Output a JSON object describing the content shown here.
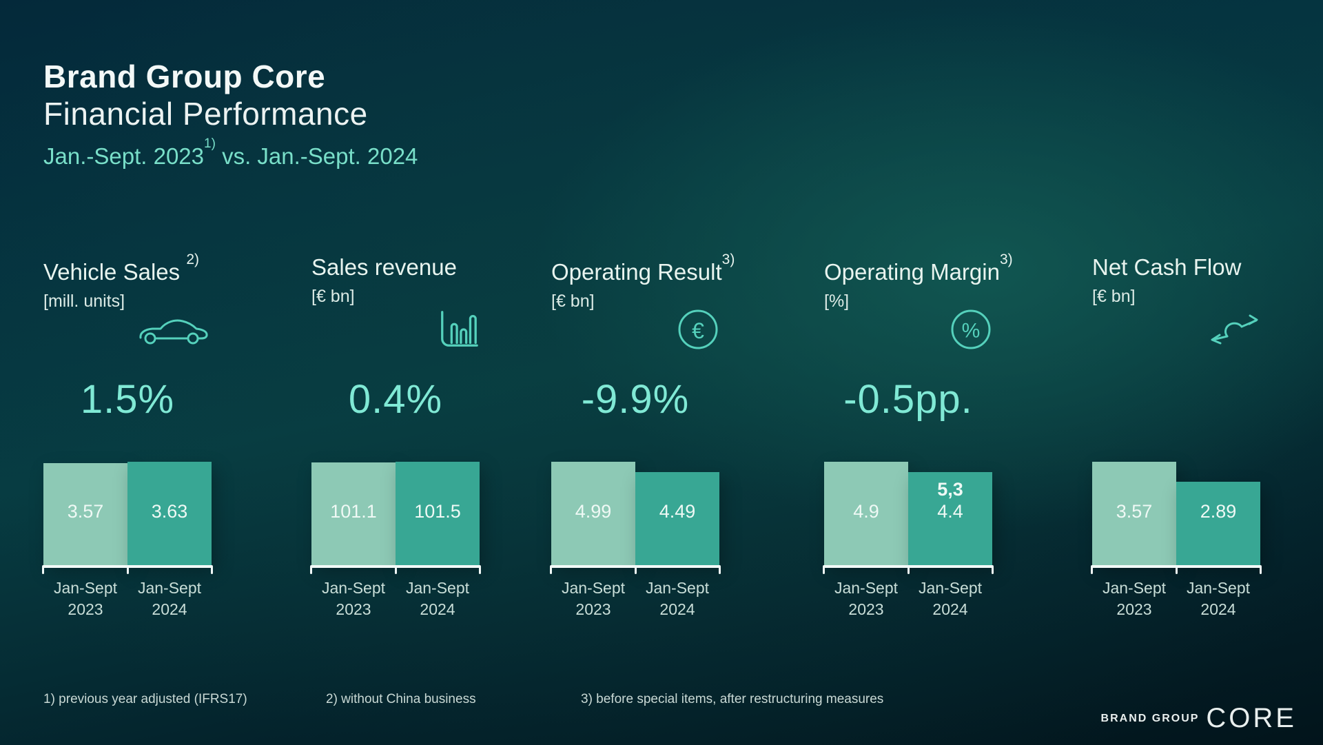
{
  "title": {
    "line1": "Brand Group Core",
    "line2": "Financial Performance",
    "period_prefix": "Jan.-Sept. 2023",
    "period_sup": "1)",
    "period_suffix": " vs. Jan.-Sept. 2024"
  },
  "chart_data": [
    {
      "type": "bar",
      "metric": "Vehicle Sales",
      "footnote_ref": "2)",
      "unit": "[mill. units]",
      "icon": "car-icon",
      "change_label": "1.5%",
      "categories": [
        "Jan-Sept 2023",
        "Jan-Sept 2024"
      ],
      "values": [
        3.57,
        3.63
      ],
      "value_labels": [
        "3.57",
        "3.63"
      ],
      "extra_bar_labels": [
        null,
        null
      ]
    },
    {
      "type": "bar",
      "metric": "Sales revenue",
      "footnote_ref": "",
      "unit": "[€ bn]",
      "icon": "bar-chart-icon",
      "change_label": "0.4%",
      "categories": [
        "Jan-Sept 2023",
        "Jan-Sept 2024"
      ],
      "values": [
        101.1,
        101.5
      ],
      "value_labels": [
        "101.1",
        "101.5"
      ],
      "extra_bar_labels": [
        null,
        null
      ]
    },
    {
      "type": "bar",
      "metric": "Operating Result",
      "footnote_ref": "3)",
      "unit": "[€ bn]",
      "icon": "euro-circle-icon",
      "change_label": "-9.9%",
      "categories": [
        "Jan-Sept 2023",
        "Jan-Sept 2024"
      ],
      "values": [
        4.99,
        4.49
      ],
      "value_labels": [
        "4.99",
        "4.49"
      ],
      "extra_bar_labels": [
        null,
        null
      ]
    },
    {
      "type": "bar",
      "metric": "Operating Margin",
      "footnote_ref": "3)",
      "unit": "[%]",
      "icon": "percent-circle-icon",
      "change_label": "-0.5pp.",
      "categories": [
        "Jan-Sept 2023",
        "Jan-Sept 2024"
      ],
      "values": [
        4.9,
        4.4
      ],
      "value_labels": [
        "4.9",
        "4.4"
      ],
      "extra_bar_labels": [
        null,
        "5,3"
      ]
    },
    {
      "type": "bar",
      "metric": "Net Cash Flow",
      "footnote_ref": "",
      "unit": "[€ bn]",
      "icon": "flow-arrows-icon",
      "change_label": "",
      "categories": [
        "Jan-Sept 2023",
        "Jan-Sept 2024"
      ],
      "values": [
        3.57,
        2.89
      ],
      "value_labels": [
        "3.57",
        "2.89"
      ],
      "extra_bar_labels": [
        null,
        null
      ]
    }
  ],
  "footnotes": [
    "1) previous year adjusted (IFRS17)",
    "2) without China business",
    "3) before special items, after restructuring measures"
  ],
  "logo": {
    "small": "BRAND GROUP",
    "large": "CORE"
  },
  "colors": {
    "title": "#f3f8f7",
    "subtitle_accent": "#79dfc9",
    "change_accent": "#80e9d5",
    "icon_stroke": "#55d1bc",
    "bar_2023": "#8dc9b5",
    "bar_2024": "#38a794",
    "bar_value_text": "#eff9f5",
    "axis": "#f2faf8",
    "category_text": "#c9ded8",
    "footnote_text": "#c9d9d5",
    "logo_text": "#e9efee",
    "background_top": "#032733",
    "background_glow": "#0e4f4b",
    "background_bottom": "#02141b"
  }
}
